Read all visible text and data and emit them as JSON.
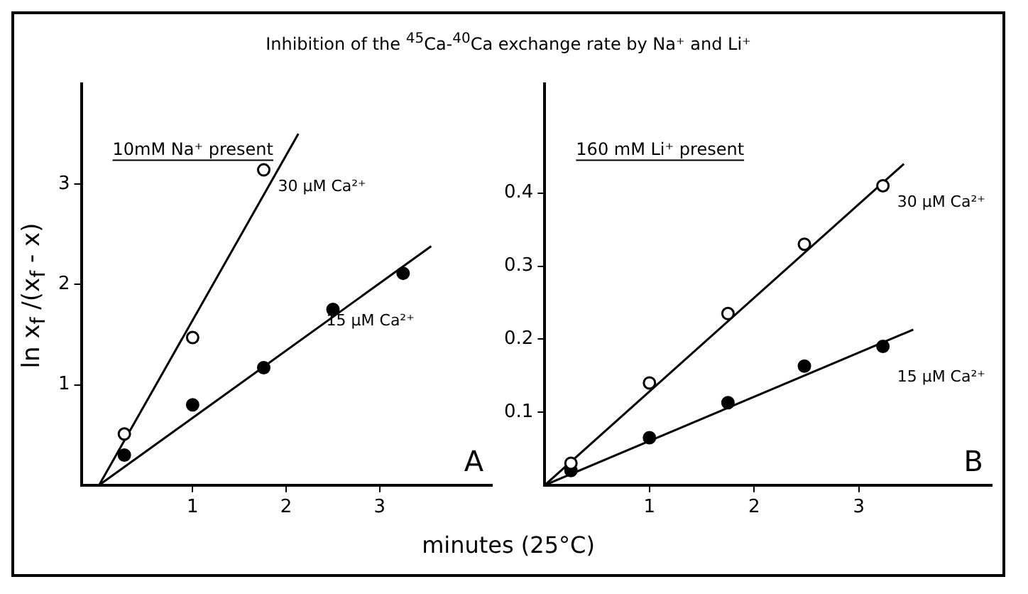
{
  "chart_data": [
    {
      "type": "scatter",
      "title": "Inhibition of the $^{45}$Ca-$^{40}$Ca exchange rate by Na⁺ and Li⁺",
      "xlabel": "minutes (25°C)",
      "ylabel": "ln x$_{f}$ /(x$_{f}$ - x)",
      "xlim": [
        -0.19,
        4.2
      ],
      "ylim": [
        0,
        4.0
      ],
      "xticks": [
        1,
        2,
        3
      ],
      "yticks": [
        1,
        2,
        3
      ],
      "annotations": [
        "10mM Na⁺ present",
        "A"
      ],
      "series": [
        {
          "name": "30 µM Ca²⁺",
          "color": "#000000",
          "marker": "circle",
          "x": [
            0.27,
            1.0,
            1.76
          ],
          "values": [
            0.51,
            1.47,
            3.14
          ]
        },
        {
          "name": "15 µM Ca²⁺",
          "color": "#000000",
          "marker": "circle",
          "x": [
            0.27,
            1.0,
            1.76,
            2.5,
            3.25
          ],
          "values": [
            0.3,
            0.8,
            1.17,
            1.75,
            2.11
          ]
        },
        {
          "type": "line",
          "color": "#000000",
          "marker": "none",
          "x": [
            0,
            2.13
          ],
          "values": [
            0,
            3.5
          ]
        },
        {
          "type": "line",
          "color": "#000000",
          "marker": "none",
          "x": [
            0,
            3.55
          ],
          "values": [
            0,
            2.38
          ]
        }
      ]
    },
    {
      "type": "scatter",
      "xlim": [
        0,
        4.27
      ],
      "ylim": [
        0,
        0.55
      ],
      "xticks": [
        1,
        2,
        3
      ],
      "yticks": [
        0.1,
        0.2,
        0.3,
        0.4
      ],
      "annotations": [
        "160 mM Li⁺ present",
        "B"
      ],
      "series": [
        {
          "name": "30 µM Ca²⁺",
          "color": "#000000",
          "marker": "circle",
          "x": [
            0.25,
            1.0,
            1.75,
            2.48,
            3.23
          ],
          "values": [
            0.03,
            0.14,
            0.235,
            0.33,
            0.41
          ]
        },
        {
          "name": "15 µM Ca²⁺",
          "color": "#000000",
          "marker": "circle",
          "x": [
            0.25,
            1.0,
            1.75,
            2.48,
            3.23
          ],
          "values": [
            0.02,
            0.065,
            0.113,
            0.163,
            0.19
          ]
        },
        {
          "type": "line",
          "color": "#000000",
          "marker": "none",
          "x": [
            0,
            3.43
          ],
          "values": [
            0,
            0.44
          ]
        },
        {
          "type": "line",
          "color": "#000000",
          "marker": "none",
          "x": [
            0,
            3.52
          ],
          "values": [
            0,
            0.213
          ]
        }
      ]
    }
  ]
}
